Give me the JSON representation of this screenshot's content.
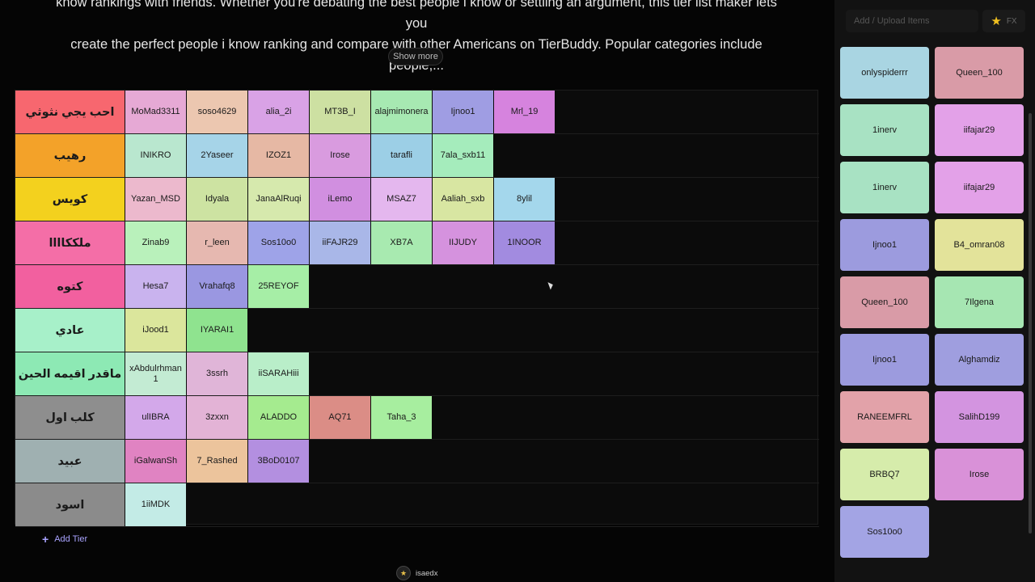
{
  "description": {
    "line1": "know rankings with friends. Whether you're debating the best people i know or settling an argument, this tier list maker lets you",
    "line2": "create the perfect people i know ranking and compare with other Americans on TierBuddy. Popular categories include people,...",
    "show_more": "Show more"
  },
  "tiers": [
    {
      "label": "احب يجي نثوثي",
      "color": "#f7676f",
      "items": [
        {
          "name": "MoMad3311",
          "color": "#e6a9d5"
        },
        {
          "name": "soso4629",
          "color": "#ecc7b0"
        },
        {
          "name": "alia_2i",
          "color": "#d9a2e6"
        },
        {
          "name": "MT3B_I",
          "color": "#cde0a2"
        },
        {
          "name": "alajmimonera",
          "color": "#a7e9b2"
        },
        {
          "name": "Ijnoo1",
          "color": "#9f9de3"
        },
        {
          "name": "Mrl_19",
          "color": "#d683de"
        }
      ]
    },
    {
      "label": "رهيب",
      "color": "#f3a229",
      "items": [
        {
          "name": "INIKRO",
          "color": "#b9e7cf"
        },
        {
          "name": "2Yaseer",
          "color": "#a6d4e8"
        },
        {
          "name": "IZOZ1",
          "color": "#e6b8a4"
        },
        {
          "name": "Irose",
          "color": "#d99bdf"
        },
        {
          "name": "tarafli",
          "color": "#9ccfe6"
        },
        {
          "name": "7ala_sxb11",
          "color": "#a5ecbc"
        }
      ]
    },
    {
      "label": "كويس",
      "color": "#f3d11e",
      "items": [
        {
          "name": "Yazan_MSD",
          "color": "#ecb9cd"
        },
        {
          "name": "Idyala",
          "color": "#cde3a2"
        },
        {
          "name": "JanaAlRuqi",
          "color": "#d6e9ad"
        },
        {
          "name": "iLemo",
          "color": "#d18fe0"
        },
        {
          "name": "MSAZ7",
          "color": "#e4b7ee"
        },
        {
          "name": "Aaliah_sxb",
          "color": "#d8e6a2"
        },
        {
          "name": "8ylil",
          "color": "#a4d7ec"
        }
      ]
    },
    {
      "label": "ملككاااا",
      "color": "#f46ea7",
      "items": [
        {
          "name": "Zinab9",
          "color": "#b9f1bb"
        },
        {
          "name": "r_leen",
          "color": "#e6b8b0"
        },
        {
          "name": "Sos10o0",
          "color": "#9ea3e8"
        },
        {
          "name": "iiFAJR29",
          "color": "#a9b7e8"
        },
        {
          "name": "XB7A",
          "color": "#a8eab0"
        },
        {
          "name": "IIJUDY",
          "color": "#d592de"
        },
        {
          "name": "1INOOR",
          "color": "#a28be0"
        }
      ]
    },
    {
      "label": "كتوه",
      "color": "#f2609f",
      "items": [
        {
          "name": "Hesa7",
          "color": "#c9b3ee"
        },
        {
          "name": "Vrahafq8",
          "color": "#9a97e1"
        },
        {
          "name": "25REYOF",
          "color": "#a6eea6"
        }
      ]
    },
    {
      "label": "عادي",
      "color": "#a7f0c9",
      "items": [
        {
          "name": "iJood1",
          "color": "#dbe69c"
        },
        {
          "name": "IYARAI1",
          "color": "#8fe38f"
        }
      ]
    },
    {
      "label": "ماقدر اقيمه الحين",
      "color": "#8de9b4",
      "items": [
        {
          "name": "xAbdulrhman1",
          "color": "#c3ebd3"
        },
        {
          "name": "3ssrh",
          "color": "#e0b5d8"
        },
        {
          "name": "iiSARAHiii",
          "color": "#b9eec9"
        }
      ]
    },
    {
      "label": "كلب اول",
      "color": "#8e8e8e",
      "items": [
        {
          "name": "ulIBRA",
          "color": "#d3a8ea"
        },
        {
          "name": "3zxxn",
          "color": "#e3b3d6"
        },
        {
          "name": "ALADDO",
          "color": "#a5eb8f"
        },
        {
          "name": "AQ71",
          "color": "#db8d86"
        },
        {
          "name": "Taha_3",
          "color": "#a7ee9f"
        }
      ]
    },
    {
      "label": "عبيد",
      "color": "#9fb0b1",
      "items": [
        {
          "name": "iGalwanSh",
          "color": "#e083c2"
        },
        {
          "name": "7_Rashed",
          "color": "#ecc49c"
        },
        {
          "name": "3BoD0107",
          "color": "#b38fe0"
        }
      ]
    },
    {
      "label": "اسود",
      "color": "#8b8b8b",
      "items": [
        {
          "name": "1iiMDK",
          "color": "#c3ebe6"
        }
      ]
    }
  ],
  "add_tier": "Add Tier",
  "footer_user": "isaedx",
  "panel": {
    "search_placeholder": "Add / Upload Items",
    "fx_label": "FX",
    "pool": [
      {
        "name": "onlyspiderrr",
        "color": "#a9d5e2"
      },
      {
        "name": "Queen_100",
        "color": "#d99ba7"
      },
      {
        "name": "1inerv",
        "color": "#a8e2c3"
      },
      {
        "name": "iifajar29",
        "color": "#e3a1e8"
      },
      {
        "name": "1inerv",
        "color": "#a8e2c3"
      },
      {
        "name": "iifajar29",
        "color": "#e3a1e8"
      },
      {
        "name": "Ijnoo1",
        "color": "#9c9bde"
      },
      {
        "name": "B4_omran08",
        "color": "#e3e39a"
      },
      {
        "name": "Queen_100",
        "color": "#d99ba7"
      },
      {
        "name": "7Ilgena",
        "color": "#a6e6b2"
      },
      {
        "name": "Ijnoo1",
        "color": "#9c9bde"
      },
      {
        "name": "Alghamdiz",
        "color": "#9f9edf"
      },
      {
        "name": "RANEEMFRL",
        "color": "#e2a2a9"
      },
      {
        "name": "SalihD199",
        "color": "#d394e0"
      },
      {
        "name": "BRBQ7",
        "color": "#d6ecab"
      },
      {
        "name": "Irose",
        "color": "#d991d8"
      },
      {
        "name": "Sos10o0",
        "color": "#a3a4e4"
      }
    ]
  }
}
